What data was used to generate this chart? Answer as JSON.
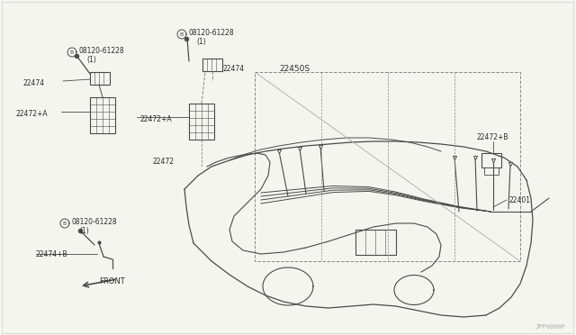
{
  "bg_color": "#f5f5f0",
  "line_color": "#4a4a4a",
  "text_color": "#2a2a2a",
  "watermark": "JPP0000P",
  "labels": {
    "B_top_label": "Ⓑ 08120-61228",
    "B_top_sub": "(1)",
    "B_left_label": "Ⓑ 08120-61228",
    "B_left_sub": "(1)",
    "B_bot_label": "Ⓑ 08120-61228",
    "B_bot_sub": "(1)",
    "label_22474_left": "22474",
    "label_22474_top": "22474",
    "label_22472A_left": "22472+A",
    "label_22472A_mid": "22472+A",
    "label_22472": "22472",
    "label_22450S": "22450S",
    "label_22472B": "22472+B",
    "label_22401": "22401",
    "label_22474B": "22474+В",
    "label_front": "FRONT"
  }
}
